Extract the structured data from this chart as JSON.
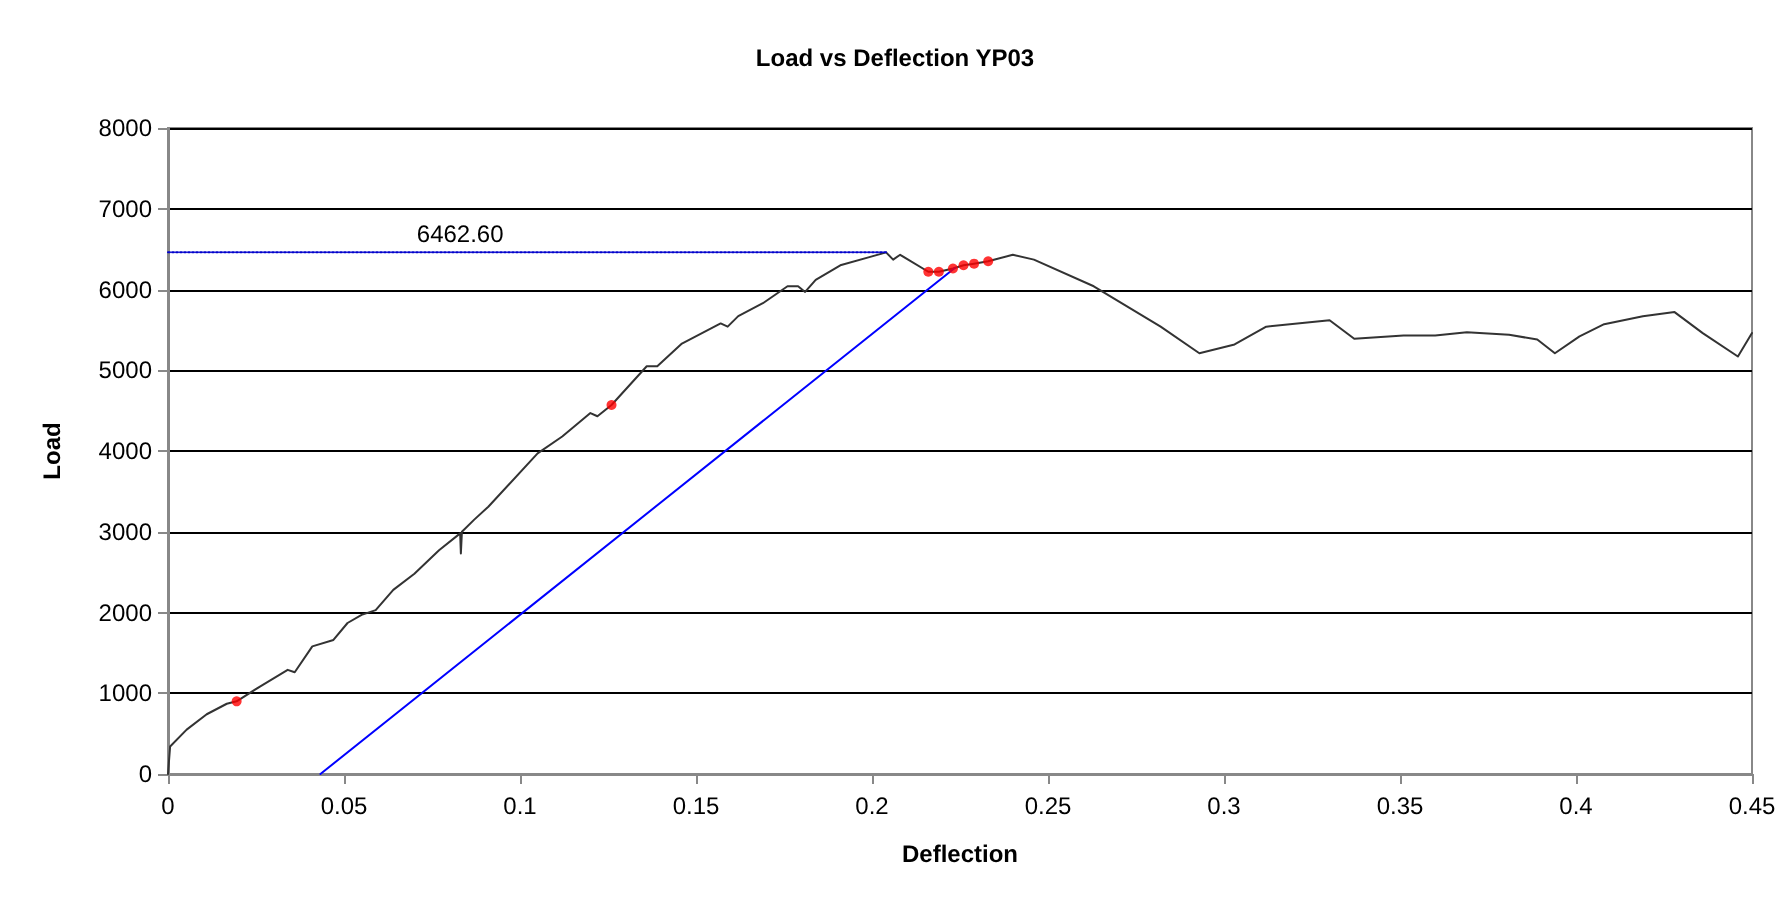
{
  "chart_data": {
    "type": "line",
    "title": "Load vs Deflection YP03",
    "xlabel": "Deflection",
    "ylabel": "Load",
    "xlim": [
      0,
      0.45
    ],
    "xticks": [
      0,
      0.05,
      0.1,
      0.15,
      0.2,
      0.25,
      0.3,
      0.35,
      0.4,
      0.45
    ],
    "ylim": [
      0,
      8000
    ],
    "yticks": [
      0,
      1000,
      2000,
      3000,
      4000,
      5000,
      6000,
      7000,
      8000
    ],
    "grid": "y",
    "annotations": [
      {
        "text": "6462.60",
        "x": 0.083,
        "y": 6462.6
      }
    ],
    "series": [
      {
        "color": "#333333",
        "marker": "none",
        "line_style": "solid",
        "x": [
          0,
          0.0006,
          0.0053,
          0.011,
          0.0167,
          0.0195,
          0.026,
          0.034,
          0.036,
          0.041,
          0.047,
          0.051,
          0.055,
          0.059,
          0.064,
          0.07,
          0.077,
          0.083,
          0.0832,
          0.0835,
          0.087,
          0.091,
          0.105,
          0.112,
          0.12,
          0.122,
          0.126,
          0.136,
          0.139,
          0.146,
          0.157,
          0.159,
          0.162,
          0.169,
          0.176,
          0.179,
          0.181,
          0.184,
          0.191,
          0.2,
          0.204,
          0.206,
          0.208,
          0.216,
          0.219,
          0.223,
          0.226,
          0.229,
          0.233,
          0.24,
          0.246,
          0.263,
          0.282,
          0.293,
          0.303,
          0.312,
          0.33,
          0.337,
          0.351,
          0.36,
          0.369,
          0.381,
          0.389,
          0.394,
          0.401,
          0.408,
          0.419,
          0.428,
          0.436,
          0.446,
          0.45
        ],
        "values": [
          0,
          340,
          550,
          740,
          870,
          900,
          1080,
          1290,
          1260,
          1580,
          1660,
          1870,
          1970,
          2030,
          2280,
          2480,
          2770,
          2980,
          2730,
          3000,
          3150,
          3310,
          3970,
          4180,
          4470,
          4430,
          4570,
          5050,
          5050,
          5330,
          5580,
          5540,
          5670,
          5830,
          6040,
          6040,
          5970,
          6120,
          6300,
          6410,
          6460,
          6370,
          6430,
          6220,
          6220,
          6260,
          6300,
          6320,
          6350,
          6430,
          6370,
          6040,
          5540,
          5210,
          5320,
          5540,
          5620,
          5390,
          5430,
          5430,
          5470,
          5440,
          5380,
          5210,
          5420,
          5570,
          5670,
          5720,
          5460,
          5170,
          5460
        ]
      },
      {
        "color": "#0000ff",
        "marker": "none",
        "line_style": "solid",
        "x": [
          0.0433,
          0.2236
        ],
        "values": [
          0,
          6270
        ]
      },
      {
        "color": "#0000cc",
        "marker": "none",
        "line_style": "dotted",
        "x": [
          0,
          0.204
        ],
        "values": [
          6462.6,
          6462.6
        ]
      },
      {
        "type": "scatter",
        "color": "#ff0000",
        "marker": "circle",
        "x": [
          0.0195,
          0.126,
          0.216,
          0.219,
          0.223,
          0.226,
          0.229,
          0.233
        ],
        "values": [
          900,
          4570,
          6220,
          6220,
          6260,
          6300,
          6320,
          6350
        ]
      }
    ]
  }
}
